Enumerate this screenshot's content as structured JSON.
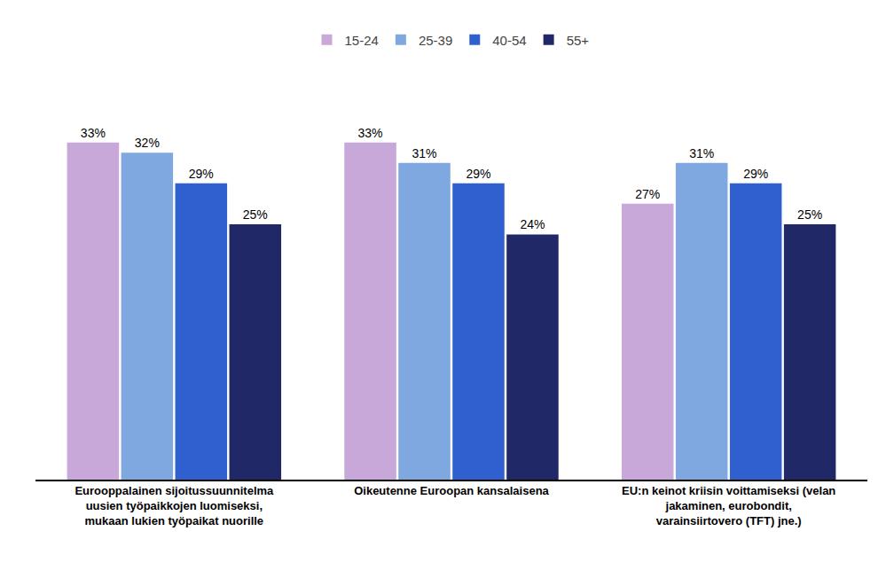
{
  "chart_data": {
    "type": "bar",
    "categories": [
      "Eurooppalainen sijoitussuunnitelma\nuusien työpaikkojen luomiseksi,\nmukaan lukien työpaikat nuorille",
      "Oikeutenne Euroopan kansalaisena",
      "EU:n keinot kriisin voittamiseksi (velan\njakaminen, eurobondit,\nvarainsiirtovero (TFT) jne.)"
    ],
    "series": [
      {
        "name": "15-24",
        "color": "#c8a8d8",
        "values": [
          33,
          33,
          27
        ],
        "value_labels": [
          "33%",
          "33%",
          "27%"
        ]
      },
      {
        "name": "25-39",
        "color": "#80a8e0",
        "values": [
          32,
          31,
          31
        ],
        "value_labels": [
          "32%",
          "31%",
          "31%"
        ]
      },
      {
        "name": "40-54",
        "color": "#3060d0",
        "values": [
          29,
          29,
          29
        ],
        "value_labels": [
          "29%",
          "29%",
          "29%"
        ]
      },
      {
        "name": "55+",
        "color": "#202868",
        "values": [
          25,
          24,
          25
        ],
        "value_labels": [
          "25%",
          "24%",
          "25%"
        ]
      }
    ],
    "ylim": [
      0,
      40
    ],
    "grid": false,
    "legend": "upper center",
    "data_labels": true,
    "tick_labels": "x"
  }
}
